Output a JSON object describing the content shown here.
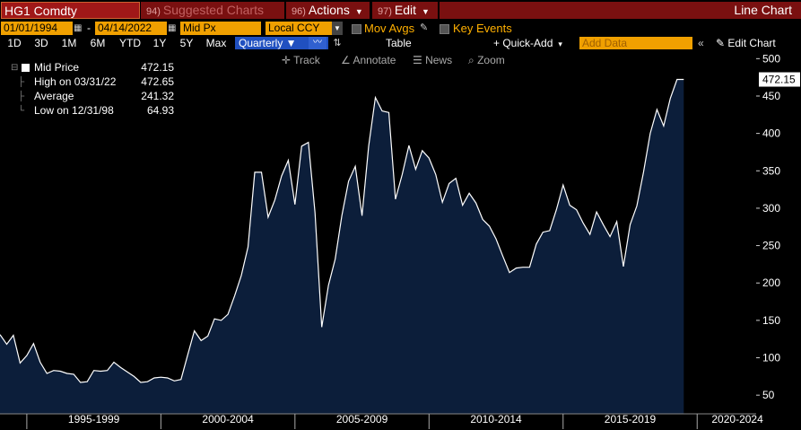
{
  "header": {
    "ticker": "HG1 Comdty",
    "suggested": {
      "num": "94)",
      "label": "Suggested Charts"
    },
    "actions": {
      "num": "96)",
      "label": "Actions"
    },
    "edit": {
      "num": "97)",
      "label": "Edit"
    },
    "title": "Line Chart"
  },
  "controls": {
    "start_date": "01/01/1994",
    "end_date": "04/14/2022",
    "date_sep": "-",
    "field": "Mid Px",
    "currency": "Local CCY",
    "mov_avgs": "Mov Avgs",
    "key_events": "Key Events"
  },
  "toolbar": {
    "periods": [
      "1D",
      "3D",
      "1M",
      "6M",
      "YTD",
      "1Y",
      "5Y",
      "Max"
    ],
    "frequency": "Quarterly ▼",
    "table": "Table",
    "quick_add": "+ Quick-Add",
    "add_data_placeholder": "Add Data",
    "edit_chart": "Edit Chart",
    "collapse": "«"
  },
  "tools": {
    "track": "Track",
    "annotate": "Annotate",
    "news": "News",
    "zoom": "Zoom"
  },
  "legend": {
    "mid_price": {
      "label": "Mid Price",
      "value": "472.15"
    },
    "high": {
      "label": "High on 03/31/22",
      "value": "472.65"
    },
    "average": {
      "label": "Average",
      "value": "241.32"
    },
    "low": {
      "label": "Low on 12/31/98",
      "value": "64.93"
    }
  },
  "colors": {
    "area_fill": "#0c1e3a",
    "line": "#ffffff",
    "header_red": "#7a1010",
    "field_orange": "#f0a000",
    "active_blue": "#2050c0"
  },
  "chart_data": {
    "type": "area",
    "series": [
      {
        "name": "Mid Price",
        "x_start": 1994.0,
        "x_step": 0.25,
        "values": [
          131,
          118,
          130,
          93,
          103,
          119,
          94,
          79,
          83,
          82,
          79,
          78,
          67,
          68,
          83,
          82,
          83,
          94,
          87,
          81,
          75,
          67,
          68,
          73,
          74,
          73,
          69,
          71,
          104,
          136,
          123,
          129,
          152,
          150,
          158,
          183,
          210,
          248,
          348,
          348,
          288,
          311,
          343,
          364,
          305,
          383,
          388,
          294,
          141,
          197,
          232,
          290,
          336,
          356,
          290,
          383,
          448,
          430,
          428,
          312,
          345,
          384,
          352,
          377,
          367,
          345,
          308,
          333,
          340,
          304,
          320,
          307,
          285,
          276,
          259,
          236,
          214,
          220,
          221,
          221,
          252,
          268,
          270,
          298,
          331,
          304,
          298,
          280,
          265,
          295,
          278,
          262,
          282,
          222,
          278,
          303,
          348,
          400,
          432,
          410,
          447,
          472.15,
          472.15
        ]
      }
    ],
    "xlim": [
      1994.0,
      2022.2
    ],
    "ylim": [
      25,
      510
    ],
    "yticks": [
      50,
      100,
      150,
      200,
      250,
      300,
      350,
      400,
      450,
      500
    ],
    "xlabels": [
      {
        "label": "1995-1999",
        "center": 1997.5
      },
      {
        "label": "2000-2004",
        "center": 2002.5
      },
      {
        "label": "2005-2009",
        "center": 2007.5
      },
      {
        "label": "2010-2014",
        "center": 2012.5
      },
      {
        "label": "2015-2019",
        "center": 2017.5
      },
      {
        "label": "2020-2024",
        "center": 2021.5
      }
    ],
    "xbounds": [
      1995,
      2000,
      2005,
      2010,
      2015,
      2020
    ],
    "last_value_label": "472.15"
  }
}
